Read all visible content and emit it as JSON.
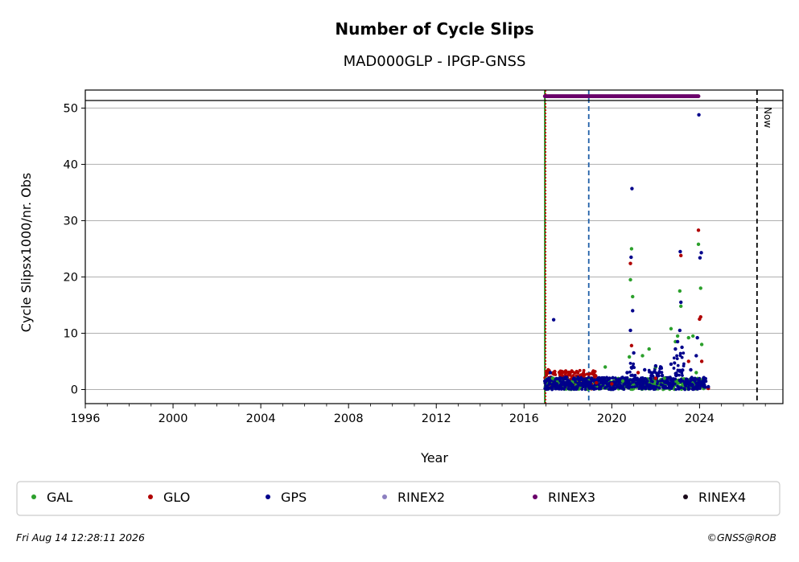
{
  "chart_data": {
    "type": "scatter",
    "title": "Number of Cycle Slips",
    "subtitle": "MAD000GLP - IPGP-GNSS",
    "xlabel": "Year",
    "ylabel": "Cycle Slipsx1000/nr. Obs",
    "xlim": [
      1996,
      2027.8
    ],
    "ylim": [
      -2.5,
      53.2
    ],
    "x_ticks": [
      "1996",
      "2000",
      "2004",
      "2008",
      "2012",
      "2016",
      "2020",
      "2024"
    ],
    "y_ticks": [
      "0",
      "10",
      "20",
      "30",
      "40",
      "50"
    ],
    "grid": "horizontal",
    "legend_position": "bottom",
    "colors": {
      "GAL": "#2ca02c",
      "GLO": "#b00000",
      "GPS": "#00008b",
      "RINEX2": "#8c7fc0",
      "RINEX3": "#6a006a",
      "RINEX4": "#1a0a1a"
    },
    "series": [
      {
        "name": "GAL",
        "points": [
          [
            2017.3,
            2.0
          ],
          [
            2018.5,
            0.8
          ],
          [
            2019.7,
            4.0
          ],
          [
            2020.5,
            1.5
          ],
          [
            2020.8,
            5.8
          ],
          [
            2020.85,
            19.5
          ],
          [
            2020.9,
            25.0
          ],
          [
            2020.95,
            16.5
          ],
          [
            2021.4,
            6.0
          ],
          [
            2021.7,
            7.2
          ],
          [
            2022.0,
            4.0
          ],
          [
            2022.4,
            2.0
          ],
          [
            2022.7,
            10.8
          ],
          [
            2022.9,
            8.5
          ],
          [
            2023.0,
            9.5
          ],
          [
            2023.1,
            17.5
          ],
          [
            2023.15,
            14.8
          ],
          [
            2023.5,
            9.2
          ],
          [
            2023.7,
            9.5
          ],
          [
            2023.85,
            3.0
          ],
          [
            2023.95,
            25.8
          ],
          [
            2024.05,
            18.0
          ],
          [
            2024.1,
            8.0
          ]
        ]
      },
      {
        "name": "GLO",
        "points": [
          [
            2017.1,
            3.5
          ],
          [
            2017.4,
            3.2
          ],
          [
            2017.7,
            3.0
          ],
          [
            2017.9,
            3.3
          ],
          [
            2018.1,
            2.8
          ],
          [
            2018.4,
            3.2
          ],
          [
            2018.7,
            2.5
          ],
          [
            2019.0,
            2.8
          ],
          [
            2019.3,
            1.2
          ],
          [
            2020.0,
            1.0
          ],
          [
            2020.85,
            22.4
          ],
          [
            2020.9,
            7.8
          ],
          [
            2021.2,
            3.0
          ],
          [
            2022.0,
            2.0
          ],
          [
            2023.15,
            23.8
          ],
          [
            2023.5,
            5.0
          ],
          [
            2023.95,
            28.3
          ],
          [
            2024.0,
            12.5
          ],
          [
            2024.05,
            12.9
          ],
          [
            2024.1,
            5.0
          ],
          [
            2024.4,
            0.2
          ]
        ]
      },
      {
        "name": "GPS",
        "points": [
          [
            2016.95,
            1.5
          ],
          [
            2017.2,
            3.0
          ],
          [
            2017.35,
            12.4
          ],
          [
            2017.5,
            1.0
          ],
          [
            2018.0,
            1.2
          ],
          [
            2018.5,
            0.8
          ],
          [
            2019.0,
            1.0
          ],
          [
            2019.5,
            1.2
          ],
          [
            2019.9,
            2.0
          ],
          [
            2020.3,
            1.5
          ],
          [
            2020.7,
            3.0
          ],
          [
            2020.85,
            10.5
          ],
          [
            2020.88,
            23.5
          ],
          [
            2020.92,
            35.7
          ],
          [
            2020.95,
            14.0
          ],
          [
            2021.0,
            6.5
          ],
          [
            2021.5,
            3.5
          ],
          [
            2021.8,
            2.5
          ],
          [
            2022.0,
            4.2
          ],
          [
            2022.3,
            2.5
          ],
          [
            2022.7,
            4.5
          ],
          [
            2022.9,
            7.2
          ],
          [
            2023.0,
            8.5
          ],
          [
            2023.1,
            10.5
          ],
          [
            2023.12,
            24.5
          ],
          [
            2023.15,
            15.5
          ],
          [
            2023.2,
            7.5
          ],
          [
            2023.6,
            3.5
          ],
          [
            2023.85,
            6.0
          ],
          [
            2023.9,
            9.2
          ],
          [
            2023.97,
            48.8
          ],
          [
            2024.02,
            23.4
          ],
          [
            2024.08,
            24.3
          ],
          [
            2024.2,
            0.5
          ],
          [
            2024.4,
            0.5
          ]
        ]
      },
      {
        "name": "RINEX2",
        "points": []
      },
      {
        "name": "RINEX3",
        "points": [
          [
            2016.95,
            52.1
          ],
          [
            2024.0,
            52.1
          ],
          [
            2024.2,
            52.1
          ],
          [
            2024.45,
            52.1
          ]
        ]
      },
      {
        "name": "RINEX4",
        "points": []
      }
    ],
    "markers": [
      {
        "type": "vline",
        "x": 2016.95,
        "color": "#008000",
        "style": "solid"
      },
      {
        "type": "vline",
        "x": 2016.98,
        "color": "#c00000",
        "style": "dotted"
      },
      {
        "type": "vline",
        "x": 2018.95,
        "color": "#1f5fa8",
        "style": "dashed"
      },
      {
        "type": "vline",
        "x": 2026.62,
        "color": "#000000",
        "style": "dashed",
        "label": "Now"
      }
    ],
    "legend": [
      "GAL",
      "GLO",
      "GPS",
      "RINEX2",
      "RINEX3",
      "RINEX4"
    ],
    "footer_left": "Fri Aug 14 12:28:11 2026",
    "footer_right": "©GNSS@ROB"
  }
}
